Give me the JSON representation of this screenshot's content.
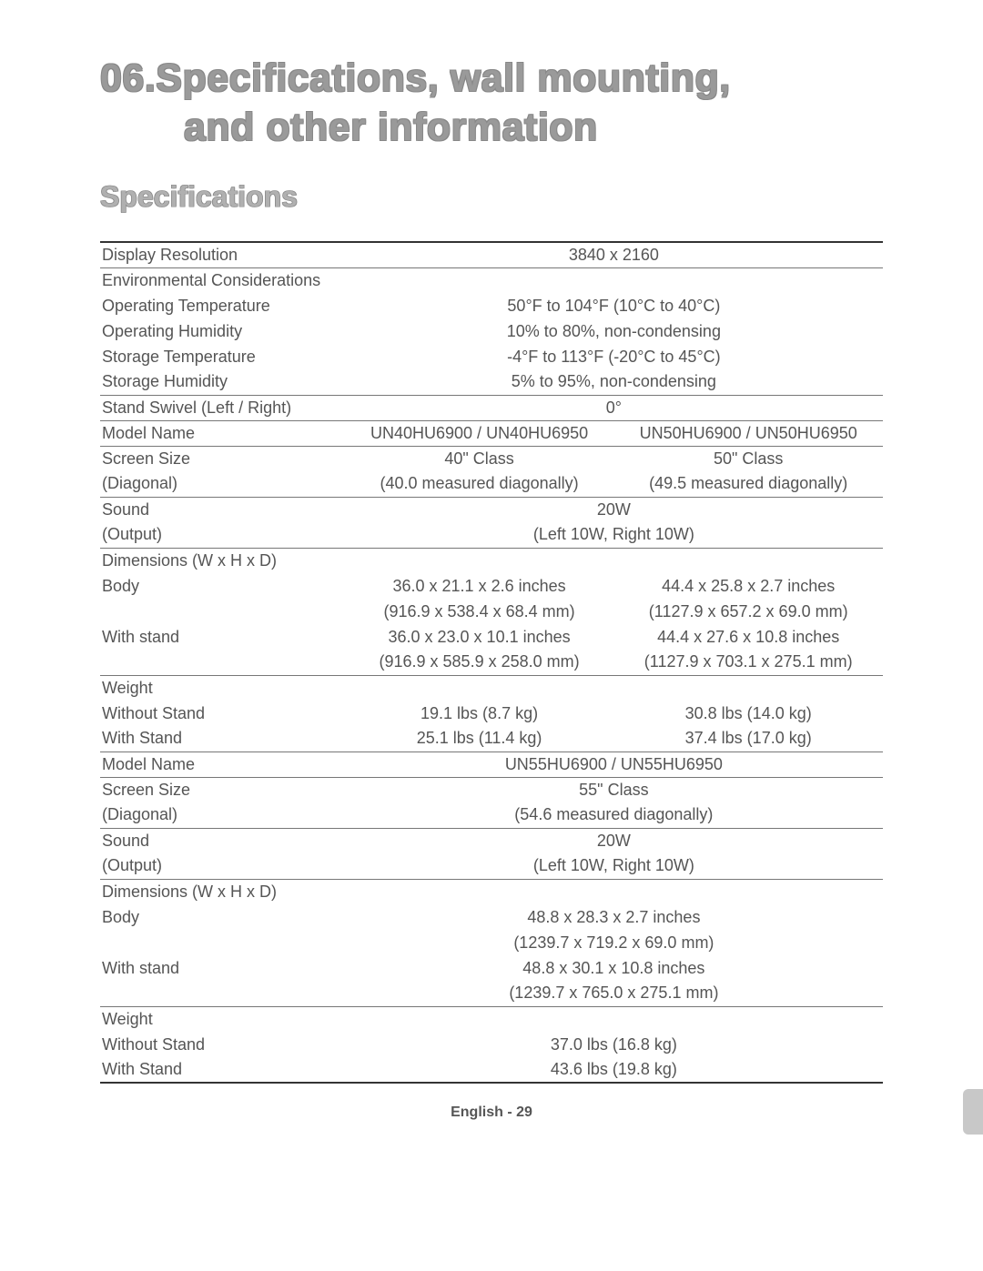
{
  "title": {
    "number": "06.",
    "line1": "Specifications, wall mounting,",
    "line2": "and other information"
  },
  "subtitle": "Specifications",
  "footer": {
    "language": "English",
    "sep": " - ",
    "page": "29"
  },
  "table": {
    "rows": [
      {
        "label": "Display Resolution",
        "span": "3840 x 2160",
        "sep_bottom": true,
        "first": true
      },
      {
        "label": "Environmental Considerations",
        "span": ""
      },
      {
        "label": "Operating Temperature",
        "span": "50°F to 104°F (10°C to 40°C)"
      },
      {
        "label": "Operating Humidity",
        "span": "10% to 80%, non-condensing"
      },
      {
        "label": "Storage Temperature",
        "span": "-4°F to 113°F (-20°C to 45°C)"
      },
      {
        "label": "Storage Humidity",
        "span": "5% to 95%, non-condensing",
        "sep_bottom": true
      },
      {
        "label": "Stand Swivel (Left / Right)",
        "span": "0°",
        "sep_bottom": true
      },
      {
        "label": "Model Name",
        "c1": "UN40HU6900 / UN40HU6950",
        "c2": "UN50HU6900 / UN50HU6950",
        "sep_bottom": true
      },
      {
        "label": "Screen Size",
        "c1": "40\" Class",
        "c2": "50\" Class"
      },
      {
        "label": "(Diagonal)",
        "c1": "(40.0 measured diagonally)",
        "c2": "(49.5 measured diagonally)",
        "sep_bottom": true
      },
      {
        "label": "Sound",
        "span": "20W"
      },
      {
        "label": "(Output)",
        "span": "(Left 10W, Right 10W)",
        "sep_bottom": true
      },
      {
        "label": "Dimensions (W x H x D)",
        "c1": "",
        "c2": ""
      },
      {
        "label": "Body",
        "c1": "36.0 x 21.1 x 2.6 inches",
        "c2": "44.4 x 25.8 x 2.7 inches"
      },
      {
        "label": "",
        "c1": "(916.9 x 538.4 x 68.4 mm)",
        "c2": "(1127.9 x 657.2 x 69.0 mm)"
      },
      {
        "label": "With stand",
        "c1": "36.0 x 23.0 x 10.1 inches",
        "c2": "44.4 x 27.6 x 10.8 inches"
      },
      {
        "label": "",
        "c1": "(916.9 x 585.9 x 258.0 mm)",
        "c2": "(1127.9 x 703.1 x 275.1 mm)",
        "sep_bottom": true
      },
      {
        "label": "Weight",
        "c1": "",
        "c2": ""
      },
      {
        "label": "Without Stand",
        "c1": "19.1 lbs (8.7 kg)",
        "c2": "30.8 lbs (14.0 kg)"
      },
      {
        "label": "With Stand",
        "c1": "25.1 lbs (11.4 kg)",
        "c2": "37.4 lbs (17.0 kg)",
        "sep_bottom": true
      },
      {
        "label": "Model Name",
        "span": "UN55HU6900 / UN55HU6950",
        "sep_bottom": true
      },
      {
        "label": "Screen Size",
        "span": "55\" Class"
      },
      {
        "label": "(Diagonal)",
        "span": "(54.6 measured diagonally)",
        "sep_bottom": true
      },
      {
        "label": "Sound",
        "span": "20W"
      },
      {
        "label": "(Output)",
        "span": "(Left 10W, Right 10W)",
        "sep_bottom": true
      },
      {
        "label": "Dimensions (W x H x D)",
        "span": ""
      },
      {
        "label": "Body",
        "span": "48.8 x 28.3 x 2.7 inches"
      },
      {
        "label": "",
        "span": "(1239.7 x 719.2 x 69.0 mm)"
      },
      {
        "label": "With stand",
        "span": "48.8 x 30.1 x 10.8 inches"
      },
      {
        "label": "",
        "span": "(1239.7 x 765.0 x 275.1 mm)",
        "sep_bottom": true
      },
      {
        "label": "Weight",
        "span": ""
      },
      {
        "label": "Without Stand",
        "span": "37.0 lbs (16.8 kg)"
      },
      {
        "label": "With Stand",
        "span": "43.6 lbs (19.8 kg)",
        "last": true
      }
    ]
  },
  "colors": {
    "title_text": "#9a9a9a",
    "title_outline": "#888888",
    "subtitle_text": "#b0b0b0",
    "body_text": "#555555",
    "rule": "#777777",
    "rule_heavy": "#333333",
    "background": "#ffffff",
    "tab": "#c8c8c8"
  }
}
